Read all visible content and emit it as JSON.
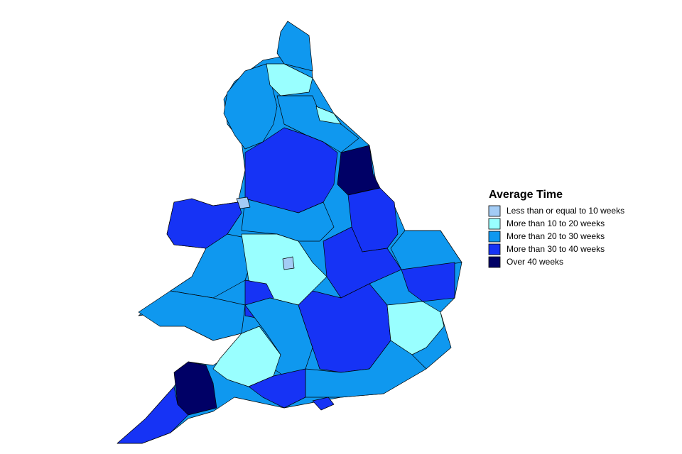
{
  "legend": {
    "title": "Average Time",
    "items": [
      {
        "label": "Less than or equal to 10 weeks",
        "color": "#a3ccf5"
      },
      {
        "label": "More than 10 to 20 weeks",
        "color": "#99ffff"
      },
      {
        "label": "More than 20 to 30 weeks",
        "color": "#0f98ef"
      },
      {
        "label": "More than 30 to 40 weeks",
        "color": "#1633f5"
      },
      {
        "label": "Over 40 weeks",
        "color": "#000066"
      }
    ]
  }
}
